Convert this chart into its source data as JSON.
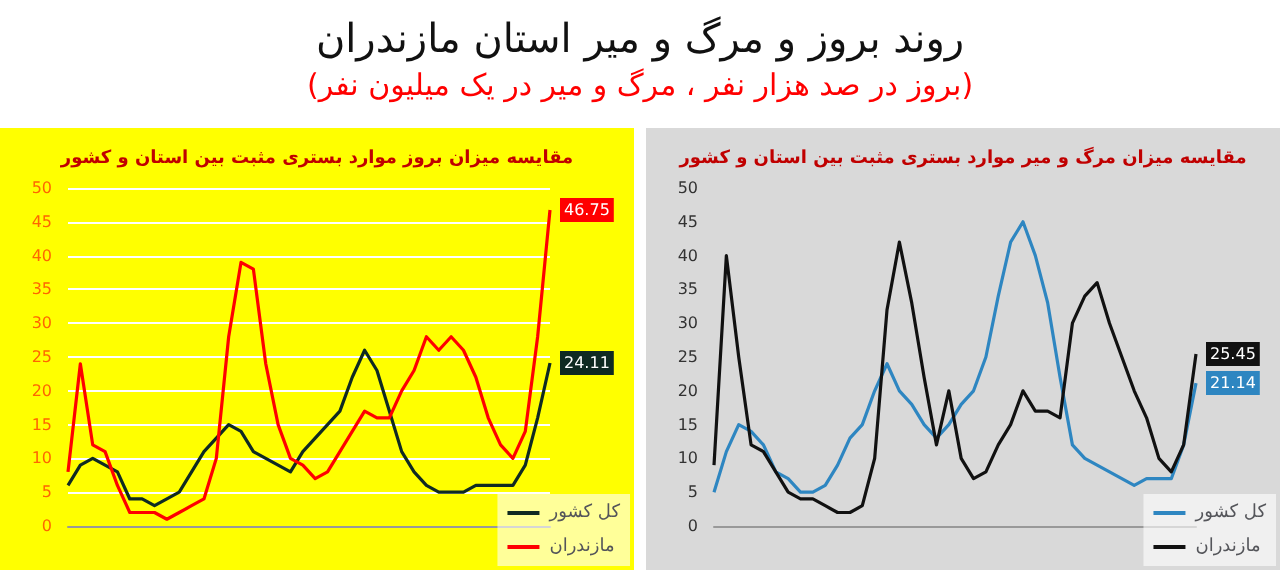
{
  "chart_data": [
    {
      "type": "other",
      "title": "روند بروز و مرگ و میر استان مازندران",
      "subtitle": "(بروز در صد هزار نفر ، مرگ و میر در یک میلیون نفر)"
    },
    {
      "type": "line",
      "title": "مقایسه میزان بروز موارد بستری مثبت بین استان و کشور",
      "categories": [
        null,
        null,
        null,
        null,
        null,
        null,
        null,
        null,
        null,
        null,
        null,
        null,
        null,
        null,
        null,
        null,
        null,
        null,
        null,
        null,
        null,
        null,
        null,
        null,
        null,
        null,
        null,
        null,
        null,
        null,
        null,
        null,
        null,
        null,
        null,
        null,
        null,
        null,
        null,
        null
      ],
      "ylim": [
        0,
        50
      ],
      "yticks": [
        0,
        5,
        10,
        15,
        20,
        25,
        30,
        35,
        40,
        45,
        50
      ],
      "grid": "y",
      "legend": "bottom right",
      "marker": "none",
      "series": [
        {
          "name": "کل کشور",
          "color": "#0f2a22",
          "values": [
            6,
            9,
            10,
            9,
            8,
            4,
            4,
            3,
            4,
            5,
            8,
            11,
            13,
            15,
            14,
            11,
            10,
            9,
            8,
            11,
            13,
            15,
            17,
            22,
            26,
            23,
            17,
            11,
            8,
            6,
            5,
            5,
            5,
            6,
            6,
            6,
            6,
            9,
            16,
            24.11
          ],
          "value_labels": [
            null,
            null,
            null,
            null,
            null,
            null,
            null,
            null,
            null,
            null,
            null,
            null,
            null,
            null,
            null,
            null,
            null,
            null,
            null,
            null,
            null,
            null,
            null,
            null,
            null,
            null,
            null,
            null,
            null,
            null,
            null,
            null,
            null,
            null,
            null,
            null,
            null,
            null,
            null,
            "24.11"
          ]
        },
        {
          "name": "مازندران",
          "color": "#ff0000",
          "values": [
            8,
            24,
            12,
            11,
            6,
            2,
            2,
            2,
            1,
            2,
            3,
            4,
            10,
            28,
            39,
            38,
            24,
            15,
            10,
            9,
            7,
            8,
            11,
            14,
            17,
            16,
            16,
            20,
            23,
            28,
            26,
            28,
            26,
            22,
            16,
            12,
            10,
            14,
            28,
            46.75
          ],
          "value_labels": [
            null,
            null,
            null,
            null,
            null,
            null,
            null,
            null,
            null,
            null,
            null,
            null,
            null,
            null,
            null,
            null,
            null,
            null,
            null,
            null,
            null,
            null,
            null,
            null,
            null,
            null,
            null,
            null,
            null,
            null,
            null,
            null,
            null,
            null,
            null,
            null,
            null,
            null,
            null,
            "46.75"
          ]
        }
      ]
    },
    {
      "type": "line",
      "title": "مقایسه میزان مرگ و میر موارد بستری مثبت بین استان و کشور",
      "categories": [
        null,
        null,
        null,
        null,
        null,
        null,
        null,
        null,
        null,
        null,
        null,
        null,
        null,
        null,
        null,
        null,
        null,
        null,
        null,
        null,
        null,
        null,
        null,
        null,
        null,
        null,
        null,
        null,
        null,
        null,
        null,
        null,
        null,
        null,
        null,
        null,
        null,
        null,
        null,
        null
      ],
      "ylim": [
        0,
        50
      ],
      "yticks": [
        0,
        5,
        10,
        15,
        20,
        25,
        30,
        35,
        40,
        45,
        50
      ],
      "grid": false,
      "legend": "bottom right",
      "marker": "none",
      "series": [
        {
          "name": "کل کشور",
          "color": "#2e86c1",
          "values": [
            5,
            11,
            15,
            14,
            12,
            8,
            7,
            5,
            5,
            6,
            9,
            13,
            15,
            20,
            24,
            20,
            18,
            15,
            13,
            15,
            18,
            20,
            25,
            34,
            42,
            45,
            40,
            33,
            22,
            12,
            10,
            9,
            8,
            7,
            6,
            7,
            7,
            7,
            12,
            21.14
          ],
          "value_labels": [
            null,
            null,
            null,
            null,
            null,
            null,
            null,
            null,
            null,
            null,
            null,
            null,
            null,
            null,
            null,
            null,
            null,
            null,
            null,
            null,
            null,
            null,
            null,
            null,
            null,
            null,
            null,
            null,
            null,
            null,
            null,
            null,
            null,
            null,
            null,
            null,
            null,
            null,
            null,
            "21.14"
          ]
        },
        {
          "name": "مازندران",
          "color": "#111111",
          "values": [
            9,
            40,
            25,
            12,
            11,
            8,
            5,
            4,
            4,
            3,
            2,
            2,
            3,
            10,
            32,
            42,
            33,
            22,
            12,
            20,
            10,
            7,
            8,
            12,
            15,
            20,
            17,
            17,
            16,
            30,
            34,
            36,
            30,
            25,
            20,
            16,
            10,
            8,
            12,
            25.45
          ],
          "value_labels": [
            null,
            null,
            null,
            null,
            null,
            null,
            null,
            null,
            null,
            null,
            null,
            null,
            null,
            null,
            null,
            null,
            null,
            null,
            null,
            null,
            null,
            null,
            null,
            null,
            null,
            null,
            null,
            null,
            null,
            null,
            null,
            null,
            null,
            null,
            null,
            null,
            null,
            null,
            null,
            "25.45"
          ]
        }
      ]
    }
  ]
}
